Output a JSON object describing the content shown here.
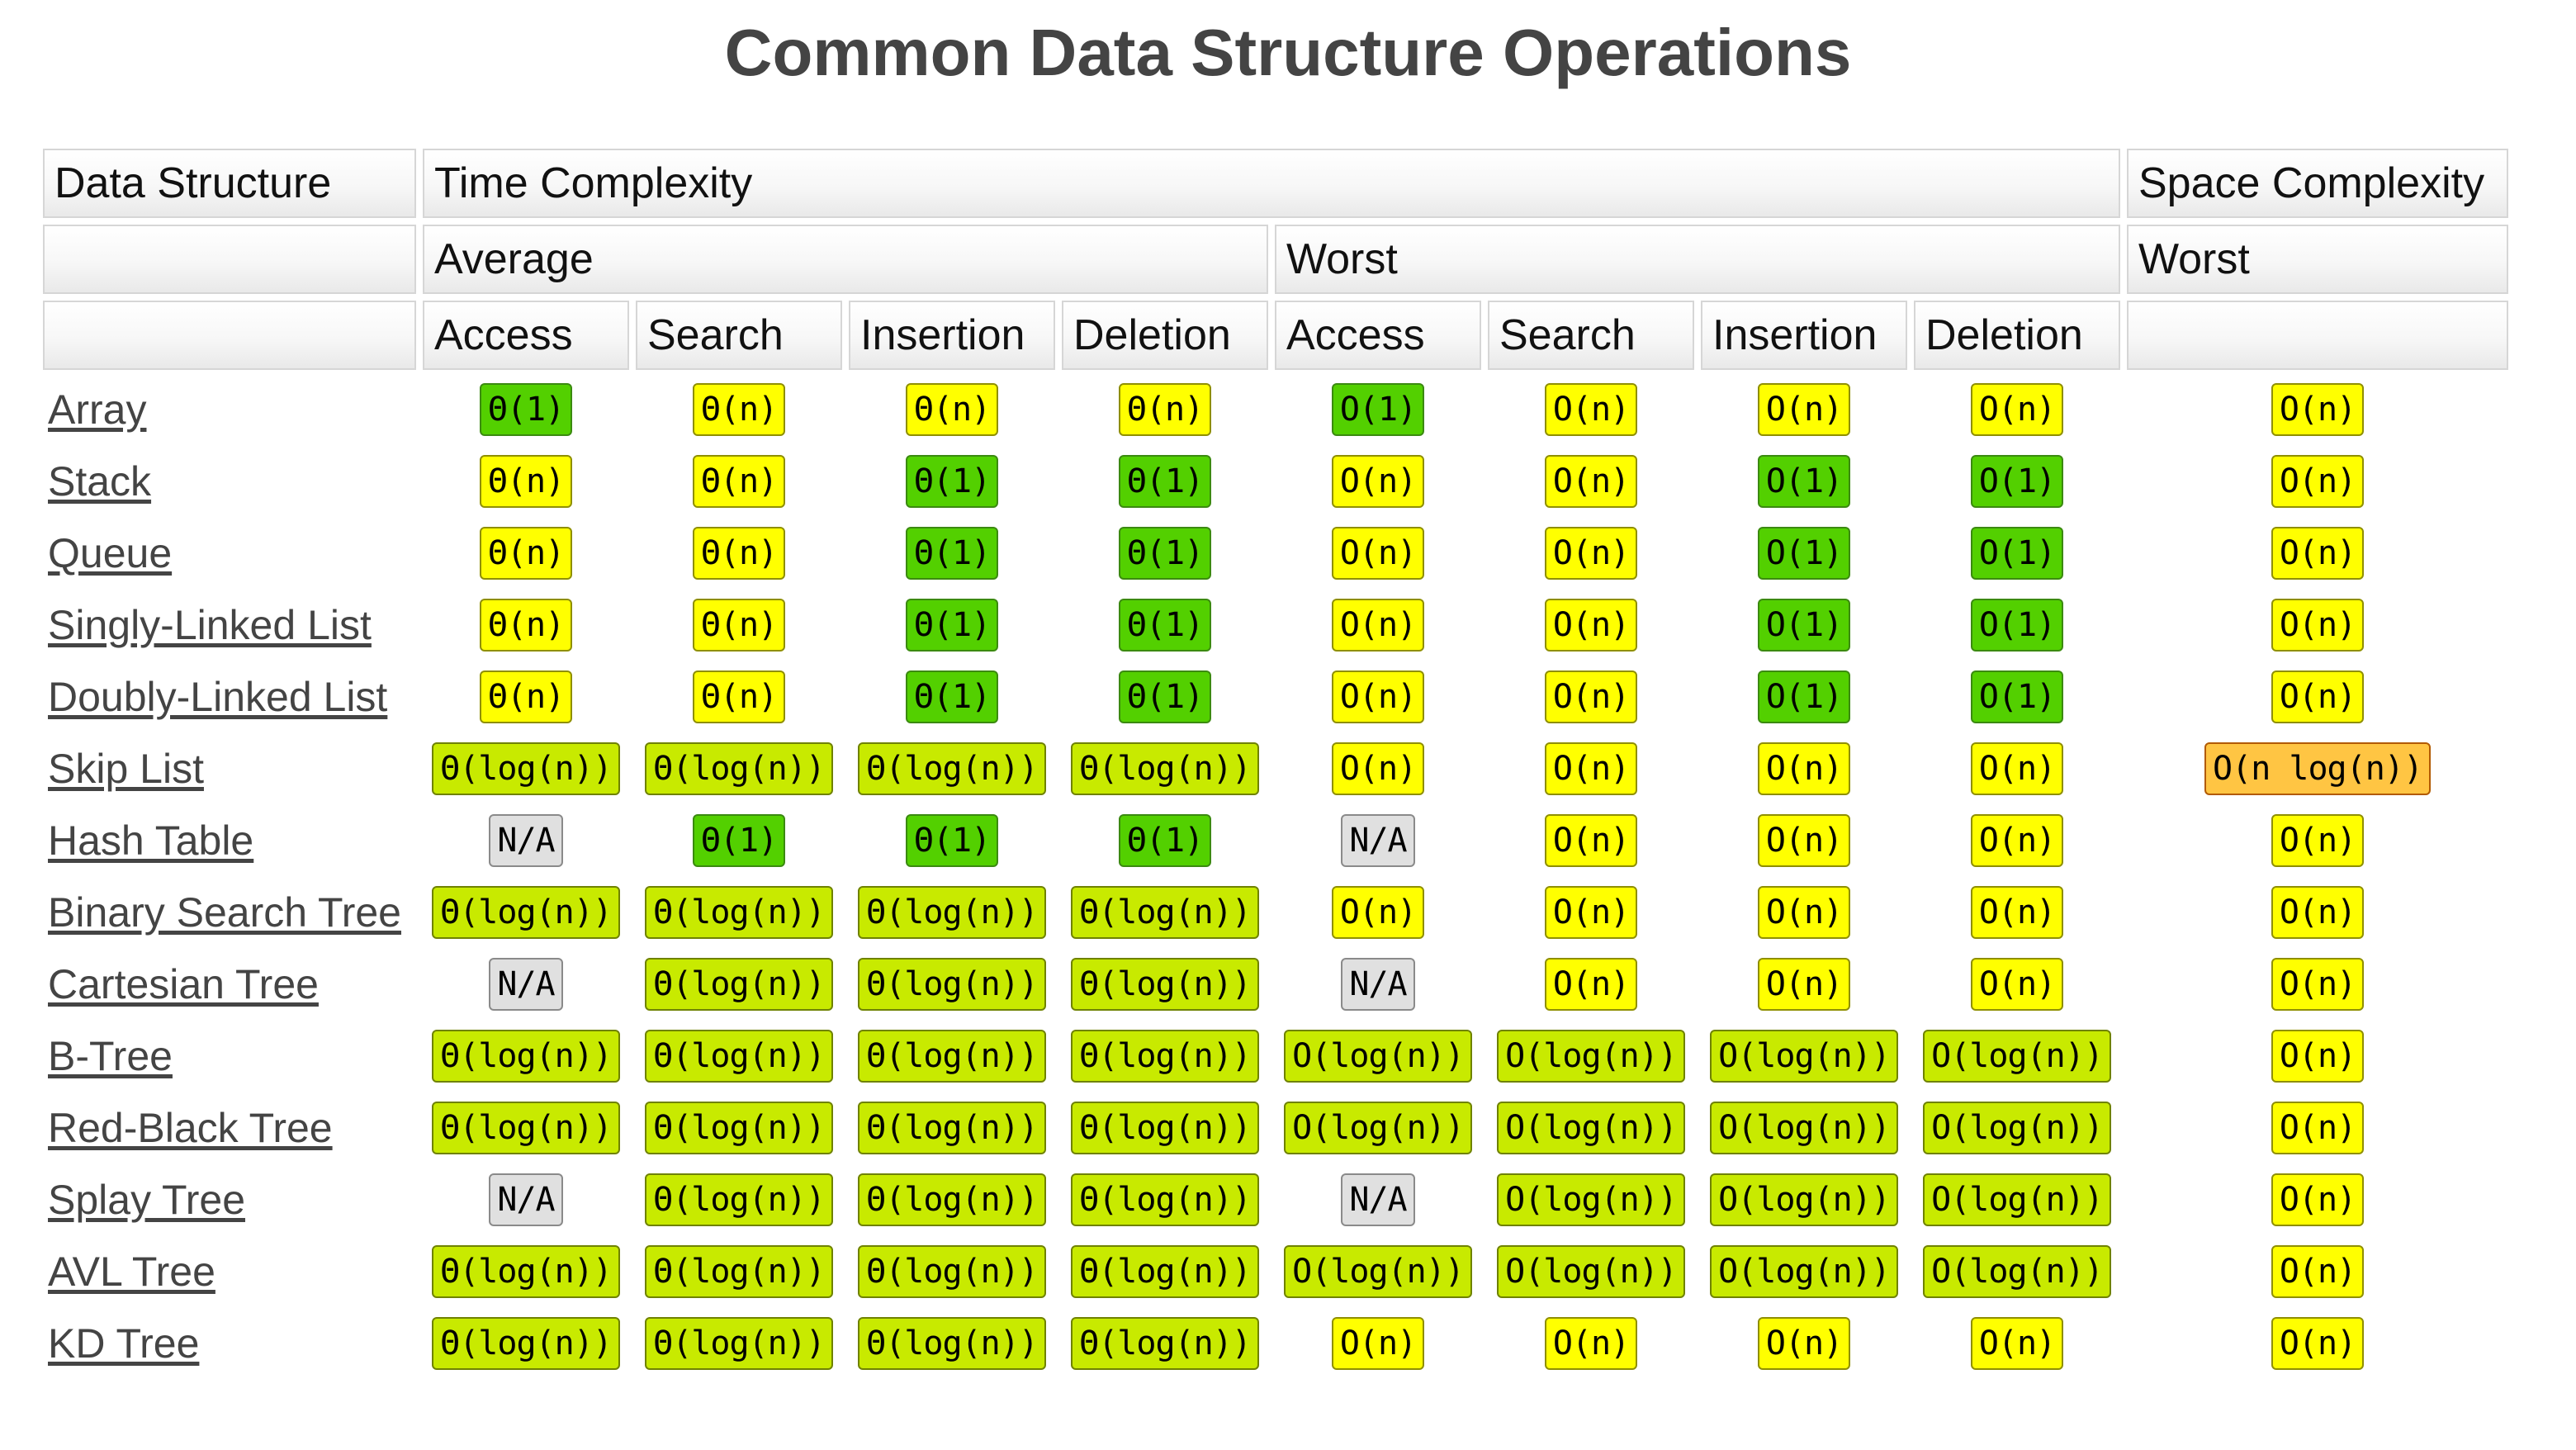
{
  "title": "Common Data Structure Operations",
  "header": {
    "row1": {
      "data_structure": "Data Structure",
      "time_complexity": "Time Complexity",
      "space_complexity": "Space Complexity"
    },
    "row2": {
      "average": "Average",
      "worst": "Worst",
      "space_worst": "Worst"
    },
    "row3": [
      "Access",
      "Search",
      "Insertion",
      "Deletion",
      "Access",
      "Search",
      "Insertion",
      "Deletion"
    ]
  },
  "colors": {
    "good": "#53d000",
    "fair": "#c8ea00",
    "ok": "#ffff00",
    "bad": "#ffc543",
    "na": "#e0e0e0"
  },
  "rows": [
    {
      "name": "Array",
      "cells": [
        {
          "v": "Θ(1)",
          "c": "good"
        },
        {
          "v": "Θ(n)",
          "c": "ok"
        },
        {
          "v": "Θ(n)",
          "c": "ok"
        },
        {
          "v": "Θ(n)",
          "c": "ok"
        },
        {
          "v": "O(1)",
          "c": "good"
        },
        {
          "v": "O(n)",
          "c": "ok"
        },
        {
          "v": "O(n)",
          "c": "ok"
        },
        {
          "v": "O(n)",
          "c": "ok"
        },
        {
          "v": "O(n)",
          "c": "ok"
        }
      ]
    },
    {
      "name": "Stack",
      "cells": [
        {
          "v": "Θ(n)",
          "c": "ok"
        },
        {
          "v": "Θ(n)",
          "c": "ok"
        },
        {
          "v": "Θ(1)",
          "c": "good"
        },
        {
          "v": "Θ(1)",
          "c": "good"
        },
        {
          "v": "O(n)",
          "c": "ok"
        },
        {
          "v": "O(n)",
          "c": "ok"
        },
        {
          "v": "O(1)",
          "c": "good"
        },
        {
          "v": "O(1)",
          "c": "good"
        },
        {
          "v": "O(n)",
          "c": "ok"
        }
      ]
    },
    {
      "name": "Queue",
      "cells": [
        {
          "v": "Θ(n)",
          "c": "ok"
        },
        {
          "v": "Θ(n)",
          "c": "ok"
        },
        {
          "v": "Θ(1)",
          "c": "good"
        },
        {
          "v": "Θ(1)",
          "c": "good"
        },
        {
          "v": "O(n)",
          "c": "ok"
        },
        {
          "v": "O(n)",
          "c": "ok"
        },
        {
          "v": "O(1)",
          "c": "good"
        },
        {
          "v": "O(1)",
          "c": "good"
        },
        {
          "v": "O(n)",
          "c": "ok"
        }
      ]
    },
    {
      "name": "Singly-Linked List",
      "cells": [
        {
          "v": "Θ(n)",
          "c": "ok"
        },
        {
          "v": "Θ(n)",
          "c": "ok"
        },
        {
          "v": "Θ(1)",
          "c": "good"
        },
        {
          "v": "Θ(1)",
          "c": "good"
        },
        {
          "v": "O(n)",
          "c": "ok"
        },
        {
          "v": "O(n)",
          "c": "ok"
        },
        {
          "v": "O(1)",
          "c": "good"
        },
        {
          "v": "O(1)",
          "c": "good"
        },
        {
          "v": "O(n)",
          "c": "ok"
        }
      ]
    },
    {
      "name": "Doubly-Linked List",
      "cells": [
        {
          "v": "Θ(n)",
          "c": "ok"
        },
        {
          "v": "Θ(n)",
          "c": "ok"
        },
        {
          "v": "Θ(1)",
          "c": "good"
        },
        {
          "v": "Θ(1)",
          "c": "good"
        },
        {
          "v": "O(n)",
          "c": "ok"
        },
        {
          "v": "O(n)",
          "c": "ok"
        },
        {
          "v": "O(1)",
          "c": "good"
        },
        {
          "v": "O(1)",
          "c": "good"
        },
        {
          "v": "O(n)",
          "c": "ok"
        }
      ]
    },
    {
      "name": "Skip List",
      "cells": [
        {
          "v": "Θ(log(n))",
          "c": "fair"
        },
        {
          "v": "Θ(log(n))",
          "c": "fair"
        },
        {
          "v": "Θ(log(n))",
          "c": "fair"
        },
        {
          "v": "Θ(log(n))",
          "c": "fair"
        },
        {
          "v": "O(n)",
          "c": "ok"
        },
        {
          "v": "O(n)",
          "c": "ok"
        },
        {
          "v": "O(n)",
          "c": "ok"
        },
        {
          "v": "O(n)",
          "c": "ok"
        },
        {
          "v": "O(n log(n))",
          "c": "bad"
        }
      ]
    },
    {
      "name": "Hash Table",
      "cells": [
        {
          "v": "N/A",
          "c": "na"
        },
        {
          "v": "Θ(1)",
          "c": "good"
        },
        {
          "v": "Θ(1)",
          "c": "good"
        },
        {
          "v": "Θ(1)",
          "c": "good"
        },
        {
          "v": "N/A",
          "c": "na"
        },
        {
          "v": "O(n)",
          "c": "ok"
        },
        {
          "v": "O(n)",
          "c": "ok"
        },
        {
          "v": "O(n)",
          "c": "ok"
        },
        {
          "v": "O(n)",
          "c": "ok"
        }
      ]
    },
    {
      "name": "Binary Search Tree",
      "cells": [
        {
          "v": "Θ(log(n))",
          "c": "fair"
        },
        {
          "v": "Θ(log(n))",
          "c": "fair"
        },
        {
          "v": "Θ(log(n))",
          "c": "fair"
        },
        {
          "v": "Θ(log(n))",
          "c": "fair"
        },
        {
          "v": "O(n)",
          "c": "ok"
        },
        {
          "v": "O(n)",
          "c": "ok"
        },
        {
          "v": "O(n)",
          "c": "ok"
        },
        {
          "v": "O(n)",
          "c": "ok"
        },
        {
          "v": "O(n)",
          "c": "ok"
        }
      ]
    },
    {
      "name": "Cartesian Tree",
      "cells": [
        {
          "v": "N/A",
          "c": "na"
        },
        {
          "v": "Θ(log(n))",
          "c": "fair"
        },
        {
          "v": "Θ(log(n))",
          "c": "fair"
        },
        {
          "v": "Θ(log(n))",
          "c": "fair"
        },
        {
          "v": "N/A",
          "c": "na"
        },
        {
          "v": "O(n)",
          "c": "ok"
        },
        {
          "v": "O(n)",
          "c": "ok"
        },
        {
          "v": "O(n)",
          "c": "ok"
        },
        {
          "v": "O(n)",
          "c": "ok"
        }
      ]
    },
    {
      "name": "B-Tree",
      "cells": [
        {
          "v": "Θ(log(n))",
          "c": "fair"
        },
        {
          "v": "Θ(log(n))",
          "c": "fair"
        },
        {
          "v": "Θ(log(n))",
          "c": "fair"
        },
        {
          "v": "Θ(log(n))",
          "c": "fair"
        },
        {
          "v": "O(log(n))",
          "c": "fair"
        },
        {
          "v": "O(log(n))",
          "c": "fair"
        },
        {
          "v": "O(log(n))",
          "c": "fair"
        },
        {
          "v": "O(log(n))",
          "c": "fair"
        },
        {
          "v": "O(n)",
          "c": "ok"
        }
      ]
    },
    {
      "name": "Red-Black Tree",
      "cells": [
        {
          "v": "Θ(log(n))",
          "c": "fair"
        },
        {
          "v": "Θ(log(n))",
          "c": "fair"
        },
        {
          "v": "Θ(log(n))",
          "c": "fair"
        },
        {
          "v": "Θ(log(n))",
          "c": "fair"
        },
        {
          "v": "O(log(n))",
          "c": "fair"
        },
        {
          "v": "O(log(n))",
          "c": "fair"
        },
        {
          "v": "O(log(n))",
          "c": "fair"
        },
        {
          "v": "O(log(n))",
          "c": "fair"
        },
        {
          "v": "O(n)",
          "c": "ok"
        }
      ]
    },
    {
      "name": "Splay Tree",
      "cells": [
        {
          "v": "N/A",
          "c": "na"
        },
        {
          "v": "Θ(log(n))",
          "c": "fair"
        },
        {
          "v": "Θ(log(n))",
          "c": "fair"
        },
        {
          "v": "Θ(log(n))",
          "c": "fair"
        },
        {
          "v": "N/A",
          "c": "na"
        },
        {
          "v": "O(log(n))",
          "c": "fair"
        },
        {
          "v": "O(log(n))",
          "c": "fair"
        },
        {
          "v": "O(log(n))",
          "c": "fair"
        },
        {
          "v": "O(n)",
          "c": "ok"
        }
      ]
    },
    {
      "name": "AVL Tree",
      "cells": [
        {
          "v": "Θ(log(n))",
          "c": "fair"
        },
        {
          "v": "Θ(log(n))",
          "c": "fair"
        },
        {
          "v": "Θ(log(n))",
          "c": "fair"
        },
        {
          "v": "Θ(log(n))",
          "c": "fair"
        },
        {
          "v": "O(log(n))",
          "c": "fair"
        },
        {
          "v": "O(log(n))",
          "c": "fair"
        },
        {
          "v": "O(log(n))",
          "c": "fair"
        },
        {
          "v": "O(log(n))",
          "c": "fair"
        },
        {
          "v": "O(n)",
          "c": "ok"
        }
      ]
    },
    {
      "name": "KD Tree",
      "cells": [
        {
          "v": "Θ(log(n))",
          "c": "fair"
        },
        {
          "v": "Θ(log(n))",
          "c": "fair"
        },
        {
          "v": "Θ(log(n))",
          "c": "fair"
        },
        {
          "v": "Θ(log(n))",
          "c": "fair"
        },
        {
          "v": "O(n)",
          "c": "ok"
        },
        {
          "v": "O(n)",
          "c": "ok"
        },
        {
          "v": "O(n)",
          "c": "ok"
        },
        {
          "v": "O(n)",
          "c": "ok"
        },
        {
          "v": "O(n)",
          "c": "ok"
        }
      ]
    }
  ]
}
